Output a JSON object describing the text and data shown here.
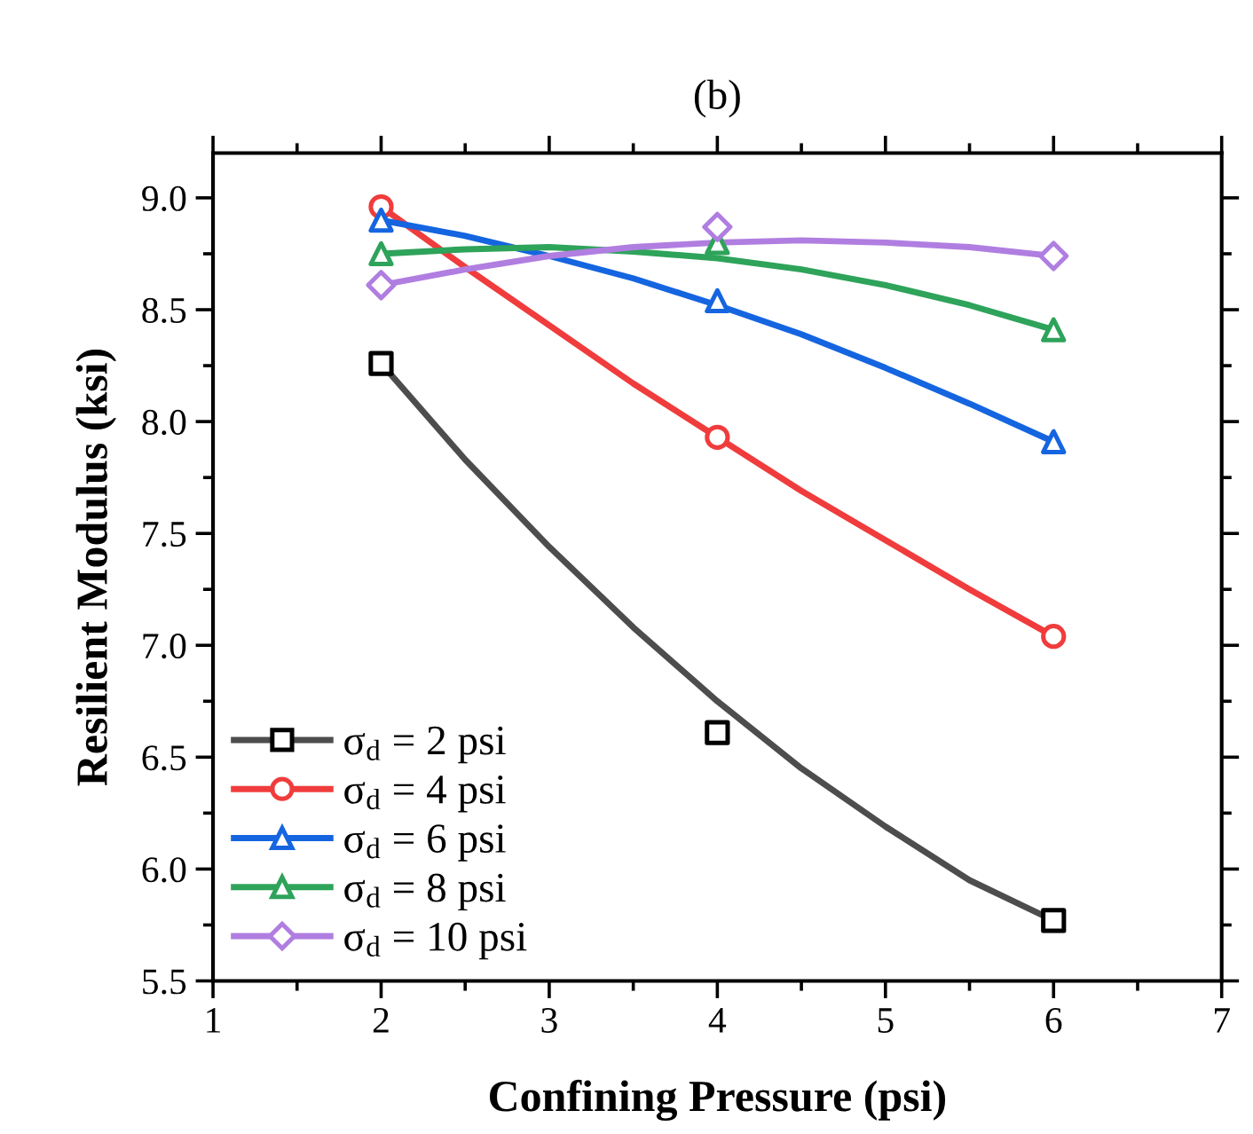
{
  "chart_data": {
    "type": "scatter",
    "title": "(b)",
    "xlabel": "Confining Pressure (psi)",
    "ylabel": "Resilient Modulus (ksi)",
    "xlim": [
      1,
      7
    ],
    "xticks": [
      1,
      2,
      3,
      4,
      5,
      6,
      7
    ],
    "ylim": [
      5.5,
      9.2
    ],
    "yticks": [
      5.5,
      {
        "value": 6,
        "label": "6.0"
      },
      6.5,
      {
        "value": 7,
        "label": "7.0"
      },
      7.5,
      {
        "value": 8,
        "label": "8.0"
      },
      8.5,
      {
        "value": 9,
        "label": "9.0"
      }
    ],
    "grid": false,
    "legend": "bottom left",
    "series": [
      {
        "name": "σ$_{d}$ = 2 psi",
        "marker": "square",
        "color": "#000000",
        "x": [
          2,
          4,
          6
        ],
        "values": [
          8.26,
          6.61,
          5.77
        ]
      },
      {
        "type": "line",
        "marker": "none",
        "color": "#4d4d4d",
        "x": [
          2,
          2.5,
          3,
          3.5,
          4,
          4.5,
          5,
          5.5,
          6
        ],
        "values": [
          8.26,
          7.83,
          7.44,
          7.08,
          6.75,
          6.45,
          6.19,
          5.95,
          5.77
        ]
      },
      {
        "name": "σ$_{d}$ = 4 psi",
        "marker": "circle",
        "color": "#f03c3c",
        "x": [
          2,
          4,
          6
        ],
        "values": [
          8.96,
          7.93,
          7.04
        ]
      },
      {
        "type": "line",
        "marker": "none",
        "color": "#f03c3c",
        "x": [
          2,
          2.5,
          3,
          3.5,
          4,
          4.5,
          5,
          5.5,
          6
        ],
        "values": [
          8.96,
          8.69,
          8.43,
          8.17,
          7.93,
          7.69,
          7.47,
          7.25,
          7.04
        ]
      },
      {
        "name": "σ$_{d}$ = 6 psi",
        "marker": "triangle",
        "color": "#1565e0",
        "x": [
          2,
          4,
          6
        ],
        "values": [
          8.9,
          8.54,
          7.91
        ]
      },
      {
        "type": "line",
        "marker": "none",
        "color": "#1565e0",
        "x": [
          2,
          2.5,
          3,
          3.5,
          4,
          4.5,
          5,
          5.5,
          6
        ],
        "values": [
          8.9,
          8.83,
          8.74,
          8.64,
          8.52,
          8.39,
          8.24,
          8.08,
          7.91
        ]
      },
      {
        "name": "σ$_{d}$ = 8 psi",
        "marker": "triangle",
        "color": "#2ea35a",
        "x": [
          2,
          4,
          6
        ],
        "values": [
          8.75,
          8.8,
          8.41
        ]
      },
      {
        "type": "line",
        "marker": "none",
        "color": "#2ea35a",
        "x": [
          2,
          2.5,
          3,
          3.5,
          4,
          4.5,
          5,
          5.5,
          6
        ],
        "values": [
          8.75,
          8.77,
          8.78,
          8.76,
          8.73,
          8.68,
          8.61,
          8.52,
          8.41
        ]
      },
      {
        "name": "σ$_{d}$ = 10 psi",
        "marker": "diamond",
        "color": "#b07ee0",
        "x": [
          2,
          4,
          6
        ],
        "values": [
          8.61,
          8.87,
          8.74
        ]
      },
      {
        "type": "line",
        "marker": "none",
        "color": "#b07ee0",
        "x": [
          2,
          2.5,
          3,
          3.5,
          4,
          4.5,
          5,
          5.5,
          6
        ],
        "values": [
          8.61,
          8.68,
          8.74,
          8.78,
          8.8,
          8.81,
          8.8,
          8.78,
          8.74
        ]
      }
    ]
  }
}
